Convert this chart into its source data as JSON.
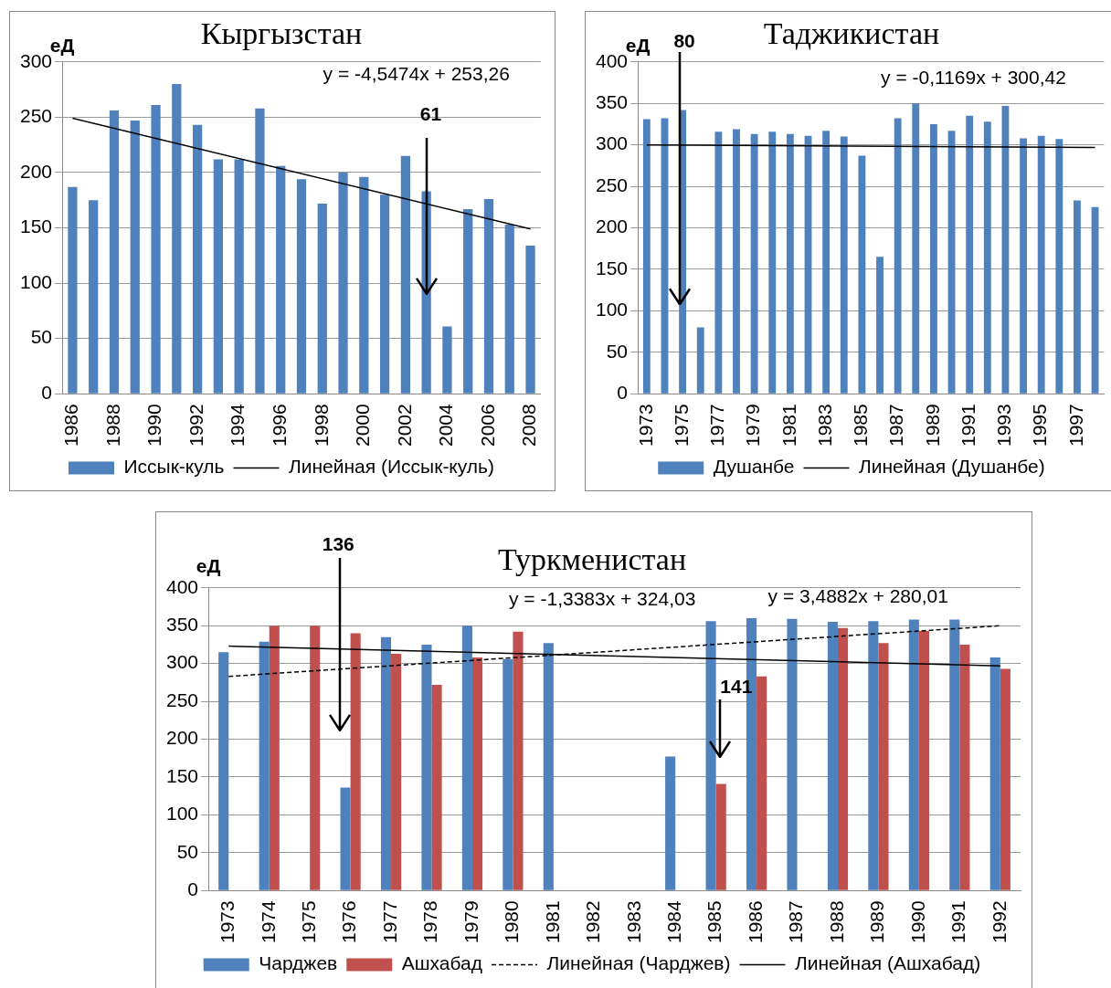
{
  "chart_data": [
    {
      "type": "bar",
      "title": "Кыргызстан",
      "ylabel": "еД",
      "categories": [
        "1986",
        null,
        "1988",
        null,
        "1990",
        null,
        "1992",
        null,
        "1994",
        null,
        "1996",
        null,
        "1998",
        null,
        "2000",
        null,
        "2002",
        null,
        "2004",
        null,
        "2006",
        null,
        "2008"
      ],
      "series": [
        {
          "name": "Иссык-куль",
          "color": "#4f81bd",
          "values": [
            187,
            175,
            256,
            247,
            261,
            280,
            243,
            212,
            212,
            258,
            206,
            194,
            172,
            200,
            196,
            180,
            215,
            183,
            61,
            167,
            176,
            153,
            134
          ]
        },
        {
          "type": "line",
          "name": "Линейная (Иссык-куль)",
          "color": "#000000",
          "line_style": "solid",
          "values": [
            249,
            null,
            null,
            null,
            null,
            null,
            null,
            null,
            null,
            null,
            null,
            null,
            null,
            null,
            null,
            null,
            null,
            null,
            null,
            null,
            null,
            null,
            149
          ]
        }
      ],
      "ylim": [
        0,
        300
      ],
      "yticks": [
        0,
        50,
        100,
        150,
        200,
        250,
        300
      ],
      "grid": "y",
      "legend": "bottom",
      "marker": "none",
      "annotations": [
        "y = -4,5474x + 253,26",
        "61"
      ]
    },
    {
      "type": "bar",
      "title": "Таджикистан",
      "ylabel": "еД",
      "categories": [
        "1973",
        null,
        "1975",
        null,
        "1977",
        null,
        "1979",
        null,
        "1981",
        null,
        "1983",
        null,
        "1985",
        null,
        "1987",
        null,
        "1989",
        null,
        "1991",
        null,
        "1993",
        null,
        "1995",
        null,
        "1997",
        null
      ],
      "series": [
        {
          "name": "Душанбе",
          "color": "#4f81bd",
          "values": [
            331,
            332,
            342,
            80,
            316,
            319,
            313,
            316,
            313,
            311,
            317,
            310,
            287,
            165,
            332,
            350,
            325,
            317,
            335,
            328,
            347,
            308,
            311,
            307,
            233,
            225
          ]
        },
        {
          "type": "line",
          "name": "Линейная (Душанбе)",
          "color": "#000000",
          "line_style": "solid",
          "values": [
            300,
            null,
            null,
            null,
            null,
            null,
            null,
            null,
            null,
            null,
            null,
            null,
            null,
            null,
            null,
            null,
            null,
            null,
            null,
            null,
            null,
            null,
            null,
            null,
            null,
            297
          ]
        }
      ],
      "ylim": [
        0,
        400
      ],
      "yticks": [
        0,
        50,
        100,
        150,
        200,
        250,
        300,
        350,
        400
      ],
      "grid": "y",
      "legend": "bottom",
      "marker": "none",
      "annotations": [
        "y = -0,1169x + 300,42",
        "80"
      ]
    },
    {
      "type": "bar",
      "title": "Туркменистан",
      "ylabel": "еД",
      "categories": [
        "1973",
        "1974",
        "1975",
        "1976",
        "1977",
        "1978",
        "1979",
        "1980",
        "1981",
        "1982",
        "1983",
        "1984",
        "1985",
        "1986",
        "1987",
        "1988",
        "1989",
        "1990",
        "1991",
        "1992"
      ],
      "series": [
        {
          "name": "Чарджев",
          "color": "#4f81bd",
          "values": [
            315,
            329,
            null,
            136,
            335,
            325,
            350,
            306,
            327,
            null,
            null,
            177,
            356,
            360,
            359,
            355,
            356,
            358,
            358,
            308
          ]
        },
        {
          "name": "Ашхабад",
          "color": "#c0504d",
          "values": [
            null,
            350,
            350,
            340,
            313,
            272,
            308,
            342,
            null,
            null,
            null,
            null,
            141,
            283,
            null,
            347,
            327,
            343,
            325,
            293
          ]
        },
        {
          "type": "line",
          "name": "Линейная (Чарджев)",
          "color": "#000000",
          "line_style": "dashed",
          "values": [
            283,
            null,
            null,
            null,
            null,
            null,
            null,
            null,
            null,
            null,
            null,
            null,
            null,
            null,
            null,
            null,
            null,
            null,
            null,
            350
          ]
        },
        {
          "type": "line",
          "name": "Линейная (Ашхабад)",
          "color": "#000000",
          "line_style": "solid",
          "values": [
            323,
            null,
            null,
            null,
            null,
            null,
            null,
            null,
            null,
            null,
            null,
            null,
            null,
            null,
            null,
            null,
            null,
            null,
            null,
            297
          ]
        }
      ],
      "ylim": [
        0,
        400
      ],
      "yticks": [
        0,
        50,
        100,
        150,
        200,
        250,
        300,
        350,
        400
      ],
      "grid": "y",
      "legend": "bottom",
      "marker": "none",
      "annotations": [
        "y = -1,3383x + 324,03",
        "y = 3,4882x + 280,01",
        "136",
        "141"
      ]
    }
  ]
}
